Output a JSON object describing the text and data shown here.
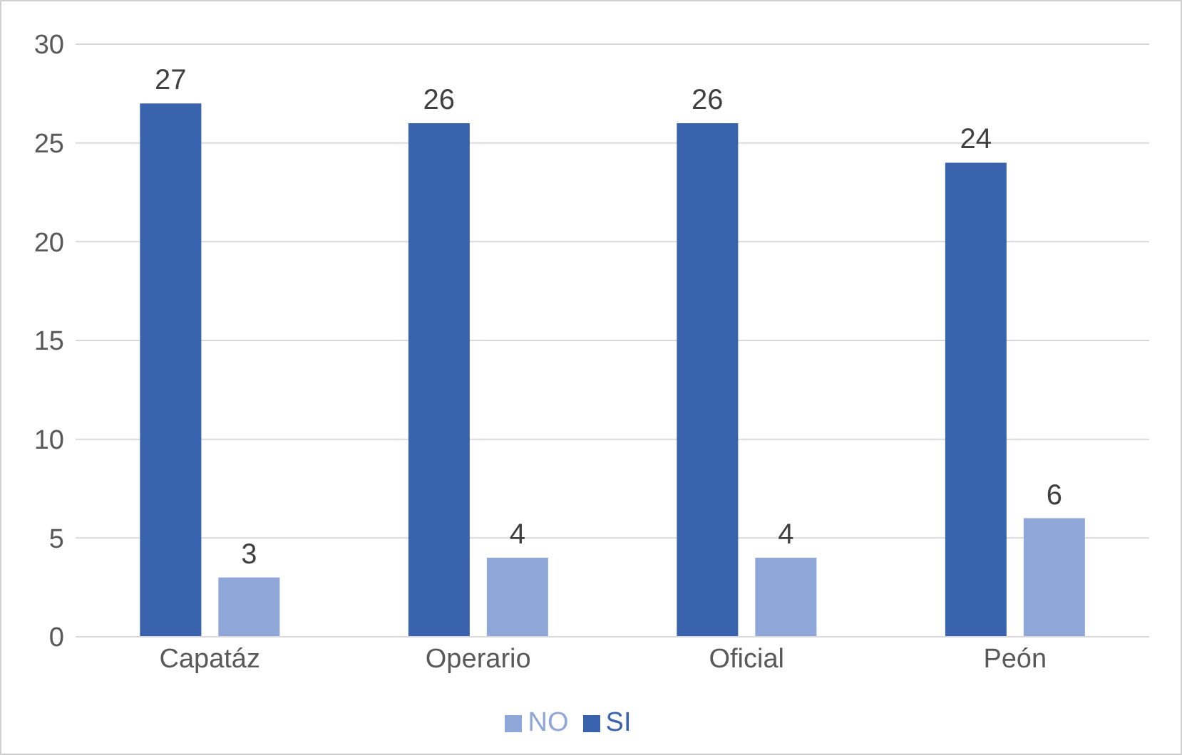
{
  "chart_data": {
    "type": "bar",
    "categories": [
      "Capatáz",
      "Operario",
      "Oficial",
      "Peón"
    ],
    "series": [
      {
        "name": "SI",
        "color": "#3a63ad",
        "values": [
          27,
          26,
          26,
          24
        ]
      },
      {
        "name": "NO",
        "color": "#8fa7d8",
        "values": [
          3,
          4,
          4,
          6
        ]
      }
    ],
    "ylim": [
      0,
      30
    ],
    "yticks": [
      0,
      5,
      10,
      15,
      20,
      25,
      30
    ],
    "grid": "y",
    "legend": "bottom",
    "data_labels": true
  }
}
